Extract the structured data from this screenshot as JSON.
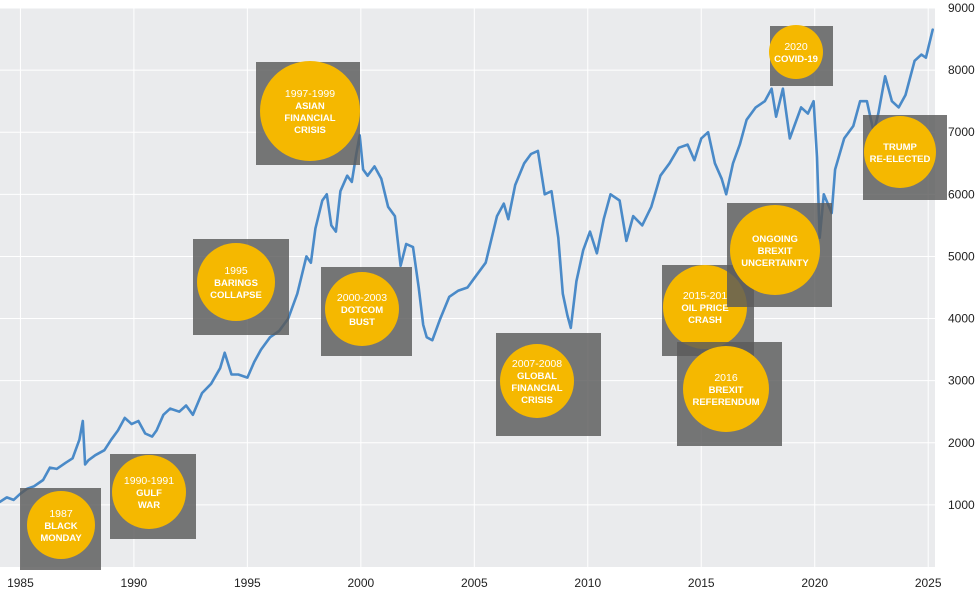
{
  "chart_data": {
    "type": "line",
    "title": "",
    "xlabel": "",
    "ylabel": "",
    "xlim": [
      1984.1,
      2025.3
    ],
    "ylim": [
      0,
      9000
    ],
    "x_ticks": [
      {
        "value": 1985,
        "label": "1985"
      },
      {
        "value": 1990,
        "label": "1990"
      },
      {
        "value": 1995,
        "label": "1995"
      },
      {
        "value": 2000,
        "label": "2000"
      },
      {
        "value": 2005,
        "label": "2005"
      },
      {
        "value": 2010,
        "label": "2010"
      },
      {
        "value": 2015,
        "label": "2015"
      },
      {
        "value": 2020,
        "label": "2020"
      },
      {
        "value": 2025,
        "label": "2025"
      }
    ],
    "y_ticks": [
      {
        "value": 1000,
        "label": "1000"
      },
      {
        "value": 2000,
        "label": "2000"
      },
      {
        "value": 3000,
        "label": "3000"
      },
      {
        "value": 4000,
        "label": "4000"
      },
      {
        "value": 5000,
        "label": "5000"
      },
      {
        "value": 6000,
        "label": "6000"
      },
      {
        "value": 7000,
        "label": "7000"
      },
      {
        "value": 8000,
        "label": "8000"
      },
      {
        "value": 9000,
        "label": "9000"
      }
    ],
    "grid": true,
    "y_axis_side": "right",
    "colors": {
      "plot_background": "#eaebed",
      "gridline": "#ffffff",
      "line": "#4a8ac8",
      "annotation_box": "#5a5a5a",
      "annotation_circle": "#f5b800"
    },
    "series": [
      {
        "name": "",
        "points": [
          [
            1984.1,
            1050
          ],
          [
            1984.4,
            1120
          ],
          [
            1984.7,
            1080
          ],
          [
            1985.0,
            1180
          ],
          [
            1985.3,
            1260
          ],
          [
            1985.6,
            1300
          ],
          [
            1986.0,
            1400
          ],
          [
            1986.3,
            1600
          ],
          [
            1986.6,
            1580
          ],
          [
            1987.0,
            1680
          ],
          [
            1987.3,
            1750
          ],
          [
            1987.6,
            2050
          ],
          [
            1987.75,
            2350
          ],
          [
            1987.85,
            1650
          ],
          [
            1988.0,
            1720
          ],
          [
            1988.3,
            1800
          ],
          [
            1988.7,
            1880
          ],
          [
            1989.0,
            2050
          ],
          [
            1989.3,
            2200
          ],
          [
            1989.6,
            2400
          ],
          [
            1989.9,
            2300
          ],
          [
            1990.2,
            2350
          ],
          [
            1990.5,
            2150
          ],
          [
            1990.8,
            2100
          ],
          [
            1991.0,
            2200
          ],
          [
            1991.3,
            2450
          ],
          [
            1991.6,
            2550
          ],
          [
            1992.0,
            2500
          ],
          [
            1992.3,
            2600
          ],
          [
            1992.6,
            2450
          ],
          [
            1993.0,
            2800
          ],
          [
            1993.4,
            2950
          ],
          [
            1993.8,
            3200
          ],
          [
            1994.0,
            3450
          ],
          [
            1994.3,
            3100
          ],
          [
            1994.6,
            3100
          ],
          [
            1995.0,
            3050
          ],
          [
            1995.3,
            3300
          ],
          [
            1995.6,
            3500
          ],
          [
            1996.0,
            3700
          ],
          [
            1996.4,
            3800
          ],
          [
            1996.8,
            4000
          ],
          [
            1997.2,
            4400
          ],
          [
            1997.6,
            5000
          ],
          [
            1997.8,
            4900
          ],
          [
            1998.0,
            5450
          ],
          [
            1998.3,
            5900
          ],
          [
            1998.5,
            6000
          ],
          [
            1998.7,
            5500
          ],
          [
            1998.9,
            5400
          ],
          [
            1999.1,
            6050
          ],
          [
            1999.4,
            6300
          ],
          [
            1999.6,
            6200
          ],
          [
            1999.8,
            6650
          ],
          [
            1999.95,
            6950
          ],
          [
            2000.1,
            6400
          ],
          [
            2000.3,
            6300
          ],
          [
            2000.6,
            6450
          ],
          [
            2000.9,
            6250
          ],
          [
            2001.2,
            5800
          ],
          [
            2001.5,
            5650
          ],
          [
            2001.75,
            4850
          ],
          [
            2002.0,
            5200
          ],
          [
            2002.3,
            5150
          ],
          [
            2002.55,
            4500
          ],
          [
            2002.75,
            3900
          ],
          [
            2002.9,
            3700
          ],
          [
            2003.15,
            3650
          ],
          [
            2003.5,
            4000
          ],
          [
            2003.9,
            4350
          ],
          [
            2004.3,
            4450
          ],
          [
            2004.7,
            4500
          ],
          [
            2005.0,
            4650
          ],
          [
            2005.5,
            4900
          ],
          [
            2006.0,
            5650
          ],
          [
            2006.3,
            5850
          ],
          [
            2006.5,
            5600
          ],
          [
            2006.8,
            6150
          ],
          [
            2007.2,
            6500
          ],
          [
            2007.5,
            6650
          ],
          [
            2007.8,
            6700
          ],
          [
            2008.1,
            6000
          ],
          [
            2008.4,
            6050
          ],
          [
            2008.7,
            5300
          ],
          [
            2008.9,
            4400
          ],
          [
            2009.1,
            4050
          ],
          [
            2009.25,
            3850
          ],
          [
            2009.5,
            4600
          ],
          [
            2009.8,
            5100
          ],
          [
            2010.1,
            5400
          ],
          [
            2010.4,
            5050
          ],
          [
            2010.7,
            5600
          ],
          [
            2011.0,
            6000
          ],
          [
            2011.4,
            5900
          ],
          [
            2011.7,
            5250
          ],
          [
            2012.0,
            5650
          ],
          [
            2012.4,
            5500
          ],
          [
            2012.8,
            5800
          ],
          [
            2013.2,
            6300
          ],
          [
            2013.6,
            6500
          ],
          [
            2014.0,
            6750
          ],
          [
            2014.4,
            6800
          ],
          [
            2014.7,
            6550
          ],
          [
            2015.0,
            6900
          ],
          [
            2015.3,
            7000
          ],
          [
            2015.6,
            6500
          ],
          [
            2015.9,
            6250
          ],
          [
            2016.1,
            6000
          ],
          [
            2016.4,
            6500
          ],
          [
            2016.7,
            6800
          ],
          [
            2017.0,
            7200
          ],
          [
            2017.4,
            7400
          ],
          [
            2017.8,
            7500
          ],
          [
            2018.1,
            7700
          ],
          [
            2018.3,
            7250
          ],
          [
            2018.6,
            7700
          ],
          [
            2018.9,
            6900
          ],
          [
            2019.1,
            7100
          ],
          [
            2019.4,
            7400
          ],
          [
            2019.7,
            7300
          ],
          [
            2019.95,
            7500
          ],
          [
            2020.1,
            6600
          ],
          [
            2020.22,
            5300
          ],
          [
            2020.4,
            6000
          ],
          [
            2020.75,
            5700
          ],
          [
            2020.9,
            6400
          ],
          [
            2021.3,
            6900
          ],
          [
            2021.7,
            7100
          ],
          [
            2022.0,
            7500
          ],
          [
            2022.3,
            7500
          ],
          [
            2022.6,
            7000
          ],
          [
            2022.8,
            7300
          ],
          [
            2023.1,
            7900
          ],
          [
            2023.4,
            7500
          ],
          [
            2023.7,
            7400
          ],
          [
            2024.0,
            7600
          ],
          [
            2024.4,
            8150
          ],
          [
            2024.7,
            8250
          ],
          [
            2024.9,
            8200
          ],
          [
            2025.2,
            8650
          ]
        ]
      }
    ],
    "annotations": [
      {
        "year_label": "1987",
        "text": [
          "BLACK",
          "MONDAY"
        ]
      },
      {
        "year_label": "1990-1991",
        "text": [
          "GULF",
          "WAR"
        ]
      },
      {
        "year_label": "1995",
        "text": [
          "BARINGS",
          "COLLAPSE"
        ]
      },
      {
        "year_label": "1997-1999",
        "text": [
          "ASIAN",
          "FINANCIAL",
          "CRISIS"
        ]
      },
      {
        "year_label": "2000-2003",
        "text": [
          "DOTCOM",
          "BUST"
        ]
      },
      {
        "year_label": "2007-2008",
        "text": [
          "GLOBAL",
          "FINANCIAL",
          "CRISIS"
        ]
      },
      {
        "year_label": "2015-201",
        "text": [
          "OIL PRICE",
          "CRASH"
        ]
      },
      {
        "year_label": "2016",
        "text": [
          "BREXIT",
          "REFERENDUM"
        ]
      },
      {
        "year_label": "",
        "text": [
          "ONGOING",
          "BREXIT",
          "UNCERTAINTY"
        ]
      },
      {
        "year_label": "2020",
        "text": [
          "COVID-19"
        ]
      },
      {
        "year_label": "",
        "text": [
          "TRUMP",
          "RE-ELECTED"
        ]
      }
    ]
  }
}
